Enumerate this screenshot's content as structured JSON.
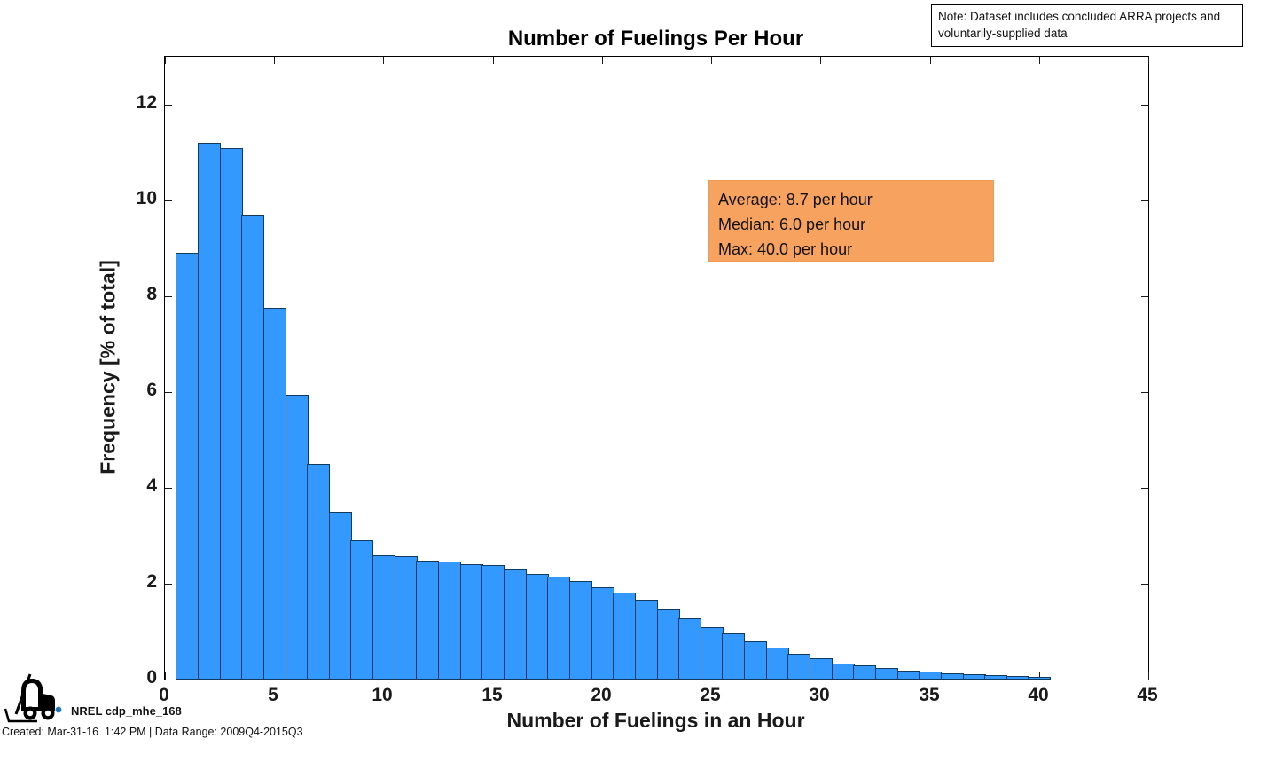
{
  "figure": {
    "title": "Number of Fuelings Per Hour",
    "note_lines": [
      "Note: Dataset includes concluded ARRA projects and",
      "voluntarily-supplied data"
    ],
    "annotation": {
      "average_line": "Average: 8.7 per hour",
      "median_line": "Median: 6.0 per hour",
      "max_line": "Max: 40.0 per hour",
      "bg_color": "#F7A35F"
    },
    "footer": {
      "logo_label": "NREL cdp_mhe_168",
      "created_line": "Created: Mar-31-16  1:42 PM | Data Range: 2009Q4-2015Q3"
    }
  },
  "chart_data": {
    "type": "bar",
    "title": "Number of Fuelings Per Hour",
    "xlabel": "Number of Fuelings in an Hour",
    "ylabel": "Frequency [% of total]",
    "xlim": [
      0,
      45
    ],
    "ylim": [
      0,
      13
    ],
    "x_ticks": [
      0,
      5,
      10,
      15,
      20,
      25,
      30,
      35,
      40,
      45
    ],
    "y_ticks": [
      0,
      2,
      4,
      6,
      8,
      10,
      12
    ],
    "grid": false,
    "legend": false,
    "bin_width": 1,
    "bin_centers": [
      1,
      2,
      3,
      4,
      5,
      6,
      7,
      8,
      9,
      10,
      11,
      12,
      13,
      14,
      15,
      16,
      17,
      18,
      19,
      20,
      21,
      22,
      23,
      24,
      25,
      26,
      27,
      28,
      29,
      30,
      31,
      32,
      33,
      34,
      35,
      36,
      37,
      38,
      39,
      40
    ],
    "values_pct": [
      8.9,
      11.2,
      11.1,
      9.7,
      7.75,
      5.95,
      4.5,
      3.5,
      2.9,
      2.6,
      2.58,
      2.49,
      2.46,
      2.41,
      2.39,
      2.32,
      2.21,
      2.15,
      2.06,
      1.92,
      1.81,
      1.67,
      1.46,
      1.27,
      1.09,
      0.96,
      0.79,
      0.67,
      0.54,
      0.44,
      0.34,
      0.3,
      0.24,
      0.19,
      0.17,
      0.13,
      0.11,
      0.1,
      0.08,
      0.06
    ],
    "stats": {
      "average_per_hour": 8.7,
      "median_per_hour": 6.0,
      "max_per_hour": 40.0
    },
    "bar_fill_color": "#3399FF",
    "bar_edge_color": "#123A5C",
    "axis_color": "#000000",
    "tick_direction": "in"
  }
}
